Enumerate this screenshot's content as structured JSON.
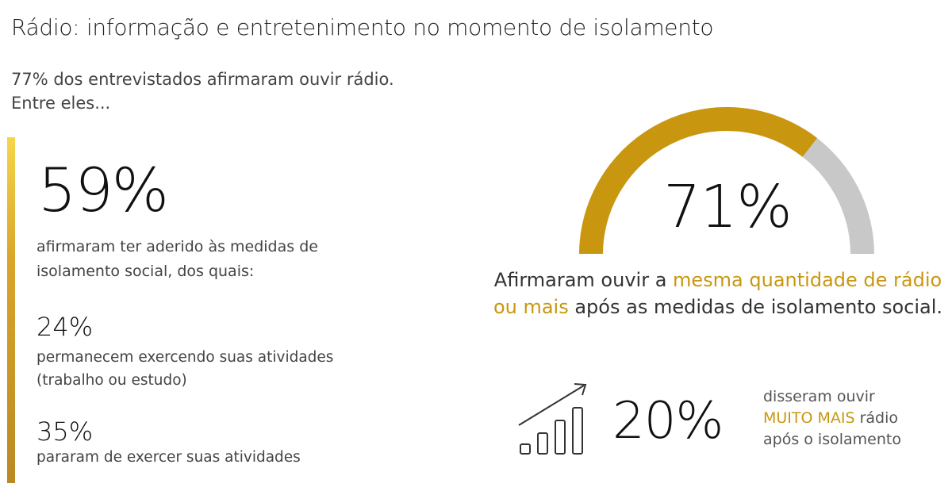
{
  "title": "Rádio: informação e entretenimento no momento de isolamento",
  "intro": {
    "line1": "77% dos entrevistados afirmaram ouvir rádio.",
    "line2": "Entre eles..."
  },
  "left": {
    "main_value": "59%",
    "main_desc": "afirmaram ter aderido às medidas de isolamento social, dos quais:",
    "items": [
      {
        "value": "24%",
        "desc": "permanecem exercendo suas atividades (trabalho ou estudo)"
      },
      {
        "value": "35%",
        "desc": "pararam de exercer suas atividades"
      }
    ]
  },
  "gauge": {
    "value_label": "71%",
    "caption_pre": "Afirmaram ouvir a ",
    "caption_highlight": "mesma quantidade de rádio ou mais",
    "caption_post": " após as medidas de isolamento social."
  },
  "growth": {
    "value_label": "20%",
    "line1": "disseram ouvir",
    "highlight": "MUITO MAIS",
    "line2_rest": " rádio",
    "line3": "após o isolamento",
    "icon": "growth-bars-arrow-icon"
  },
  "colors": {
    "accent": "#c9970f",
    "gauge_fill": "#c9970f",
    "gauge_track": "#c8c8c8",
    "bar_gradient_top": "#f5d64a",
    "bar_gradient_bottom": "#b98a24"
  },
  "chart_data": [
    {
      "type": "gauge",
      "label": "71%",
      "value": 71,
      "max": 100
    },
    {
      "type": "bar",
      "values": [
        59,
        24,
        35,
        20
      ]
    }
  ]
}
